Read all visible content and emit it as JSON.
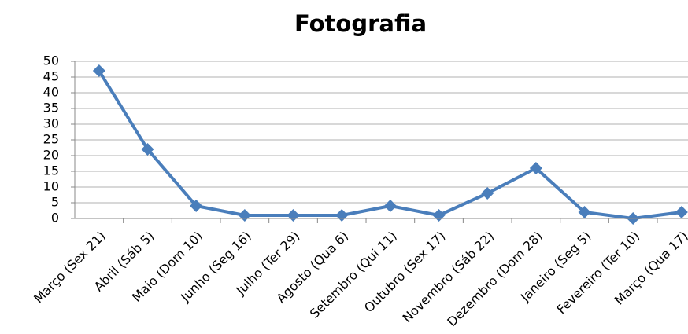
{
  "chart_data": {
    "type": "line",
    "title": "Fotografia",
    "categories": [
      "Março (Sex 21)",
      "Abril (Sáb 5)",
      "Maio (Dom 10)",
      "Junho (Seg 16)",
      "Julho (Ter 29)",
      "Agosto (Qua 6)",
      "Setembro (Qui 11)",
      "Outubro (Sex 17)",
      "Novembro (Sáb 22)",
      "Dezembro (Dom 28)",
      "Janeiro (Seg 5)",
      "Fevereiro (Ter 10)",
      "Março (Qua 17)"
    ],
    "series": [
      {
        "name": "Fotografia",
        "color": "#4a7ebb",
        "values": [
          47,
          22,
          4,
          1,
          1,
          1,
          4,
          1,
          8,
          16,
          2,
          0,
          2
        ]
      }
    ],
    "ylim": [
      0,
      50
    ],
    "yticks": [
      0,
      5,
      10,
      15,
      20,
      25,
      30,
      35,
      40,
      45,
      50
    ],
    "grid": true
  }
}
